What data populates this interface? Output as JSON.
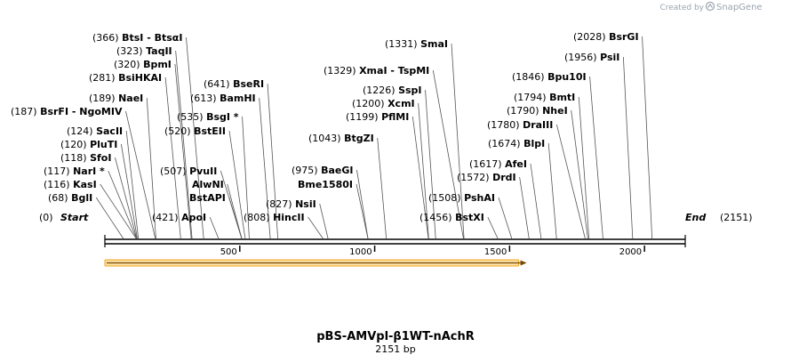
{
  "credit": {
    "text": "Created by",
    "brand": "SnapGene"
  },
  "plasmid": {
    "name": "pBS-AMVpl-β1WT-nAchR",
    "length_label": "2151 bp",
    "length": 2151
  },
  "start_marker": {
    "pos": "(0)",
    "name": "Start",
    "bp": 0
  },
  "end_marker": {
    "name": "End",
    "pos": "(2151)",
    "bp": 2151
  },
  "axis_ticks": [
    {
      "bp": 500,
      "label": "500"
    },
    {
      "bp": 1000,
      "label": "1000"
    },
    {
      "bp": 1500,
      "label": "1500"
    },
    {
      "bp": 2000,
      "label": "2000"
    }
  ],
  "feature": {
    "name": "orf-arrow",
    "start_bp": 0,
    "end_bp": 1560,
    "color": "#f3a51d"
  },
  "sites": [
    {
      "pos": "(68)",
      "name": "BglI",
      "bp": 68
    },
    {
      "pos": "(116)",
      "name": "KasI",
      "bp": 116
    },
    {
      "pos": "(117)",
      "name": "NarI *",
      "bp": 117
    },
    {
      "pos": "(118)",
      "name": "SfoI",
      "bp": 118
    },
    {
      "pos": "(120)",
      "name": "PluTI",
      "bp": 120
    },
    {
      "pos": "(124)",
      "name": "SacII",
      "bp": 124
    },
    {
      "pos": "(187)",
      "name": "BsrFI",
      "name2": "NgoMIV",
      "bp": 187
    },
    {
      "pos": "(189)",
      "name": "NaeI",
      "bp": 189
    },
    {
      "pos": "(281)",
      "name": "BsiHKAI",
      "bp": 281
    },
    {
      "pos": "(320)",
      "name": "BpmI",
      "bp": 320
    },
    {
      "pos": "(323)",
      "name": "TaqII",
      "bp": 323
    },
    {
      "pos": "(366)",
      "name": "BtsI",
      "name2": "BtsαI",
      "bp": 366
    },
    {
      "pos": "(421)",
      "name": "ApoI",
      "bp": 421
    },
    {
      "pos": "(507)",
      "name": "PvuII",
      "bp": 507
    },
    {
      "pos": "",
      "name": "AlwNI",
      "bp": 507
    },
    {
      "pos": "",
      "name": "BstAPI",
      "bp": 507
    },
    {
      "pos": "(520)",
      "name": "BstEII",
      "bp": 520
    },
    {
      "pos": "(535)",
      "name": "BsgI *",
      "bp": 535
    },
    {
      "pos": "(613)",
      "name": "BamHI",
      "bp": 613
    },
    {
      "pos": "(641)",
      "name": "BseRI",
      "bp": 641
    },
    {
      "pos": "(808)",
      "name": "HincII",
      "bp": 808
    },
    {
      "pos": "(827)",
      "name": "NsiI",
      "bp": 827
    },
    {
      "pos": "",
      "name": "Bme1580I",
      "bp": 975
    },
    {
      "pos": "(975)",
      "name": "BaeGI",
      "bp": 975
    },
    {
      "pos": "(1043)",
      "name": "BtgZI",
      "bp": 1043
    },
    {
      "pos": "(1199)",
      "name": "PflMI",
      "bp": 1199
    },
    {
      "pos": "(1200)",
      "name": "XcmI",
      "bp": 1200
    },
    {
      "pos": "(1226)",
      "name": "SspI",
      "bp": 1226
    },
    {
      "pos": "(1329)",
      "name": "XmaI",
      "name2": "TspMI",
      "bp": 1329
    },
    {
      "pos": "(1331)",
      "name": "SmaI",
      "bp": 1331
    },
    {
      "pos": "(1456)",
      "name": "BstXI",
      "bp": 1456
    },
    {
      "pos": "(1508)",
      "name": "PshAI",
      "bp": 1508
    },
    {
      "pos": "(1572)",
      "name": "DrdI",
      "bp": 1572
    },
    {
      "pos": "(1617)",
      "name": "AfeI",
      "bp": 1617
    },
    {
      "pos": "(1674)",
      "name": "BlpI",
      "bp": 1674
    },
    {
      "pos": "(1780)",
      "name": "DraIII",
      "bp": 1780
    },
    {
      "pos": "(1790)",
      "name": "NheI",
      "bp": 1790
    },
    {
      "pos": "(1794)",
      "name": "BmtI",
      "bp": 1794
    },
    {
      "pos": "(1846)",
      "name": "Bpu10I",
      "bp": 1846
    },
    {
      "pos": "(1956)",
      "name": "PsiI",
      "bp": 1956
    },
    {
      "pos": "(2028)",
      "name": "BsrGI",
      "bp": 2028
    }
  ]
}
